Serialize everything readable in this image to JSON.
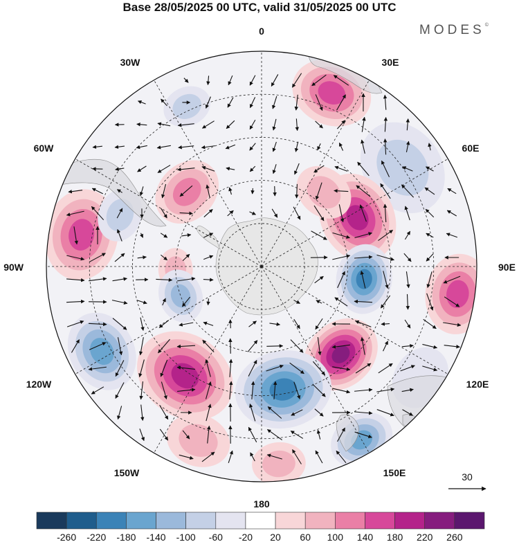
{
  "title": "Base 28/05/2025 00 UTC, valid 31/05/2025 00 UTC",
  "brand": {
    "name": "MODES",
    "mark": "©"
  },
  "longitude_labels": {
    "top": "0",
    "e30": "30E",
    "e60": "60E",
    "e90": "90E",
    "e120": "120E",
    "e150": "150E",
    "bottom": "180",
    "w150": "150W",
    "w120": "120W",
    "w90": "90W",
    "w60": "60W",
    "w30": "30W"
  },
  "reference_vector": {
    "value": "30"
  },
  "colorbar": {
    "ticks": [
      "-260",
      "-220",
      "-180",
      "-140",
      "-100",
      "-60",
      "-20",
      "20",
      "60",
      "100",
      "140",
      "180",
      "220",
      "260"
    ],
    "colors": [
      "#1a3a5c",
      "#1f5d8c",
      "#3b83b7",
      "#6aa5cf",
      "#9bb9db",
      "#c4d0e6",
      "#e4e4f0",
      "#ffffff",
      "#f8d6d8",
      "#f1b3bf",
      "#ea7fa6",
      "#d7489a",
      "#b4238a",
      "#861d7e",
      "#5b176e"
    ]
  },
  "anomalies": [
    {
      "lon": 22,
      "dist": 0.87,
      "r": 0.15,
      "v": 160
    },
    {
      "lon": -25,
      "dist": 0.82,
      "r": 0.09,
      "v": -80
    },
    {
      "lon": 55,
      "dist": 0.8,
      "r": 0.18,
      "v": -60
    },
    {
      "lon": 63,
      "dist": 0.5,
      "r": 0.17,
      "v": 210
    },
    {
      "lon": 40,
      "dist": 0.45,
      "r": 0.11,
      "v": 60
    },
    {
      "lon": -45,
      "dist": 0.49,
      "r": 0.13,
      "v": 120
    },
    {
      "lon": -80,
      "dist": 0.85,
      "r": 0.17,
      "v": 170
    },
    {
      "lon": -70,
      "dist": 0.7,
      "r": 0.1,
      "v": -80
    },
    {
      "lon": -92,
      "dist": 0.4,
      "r": 0.08,
      "v": 80
    },
    {
      "lon": -110,
      "dist": 0.4,
      "r": 0.1,
      "v": -100
    },
    {
      "lon": 97,
      "dist": 0.48,
      "r": 0.13,
      "v": -210
    },
    {
      "lon": 98,
      "dist": 0.92,
      "r": 0.15,
      "v": 170
    },
    {
      "lon": 138,
      "dist": 0.55,
      "r": 0.15,
      "v": 230
    },
    {
      "lon": -145,
      "dist": 0.62,
      "r": 0.19,
      "v": 180
    },
    {
      "lon": 170,
      "dist": 0.58,
      "r": 0.18,
      "v": -200
    },
    {
      "lon": -118,
      "dist": 0.84,
      "r": 0.15,
      "v": -170
    },
    {
      "lon": 150,
      "dist": 0.93,
      "r": 0.12,
      "v": -160
    },
    {
      "lon": -160,
      "dist": 0.86,
      "r": 0.12,
      "v": 80
    },
    {
      "lon": 175,
      "dist": 0.92,
      "r": 0.1,
      "v": 80
    },
    {
      "lon": 125,
      "dist": 0.9,
      "r": 0.12,
      "v": -40
    }
  ]
}
